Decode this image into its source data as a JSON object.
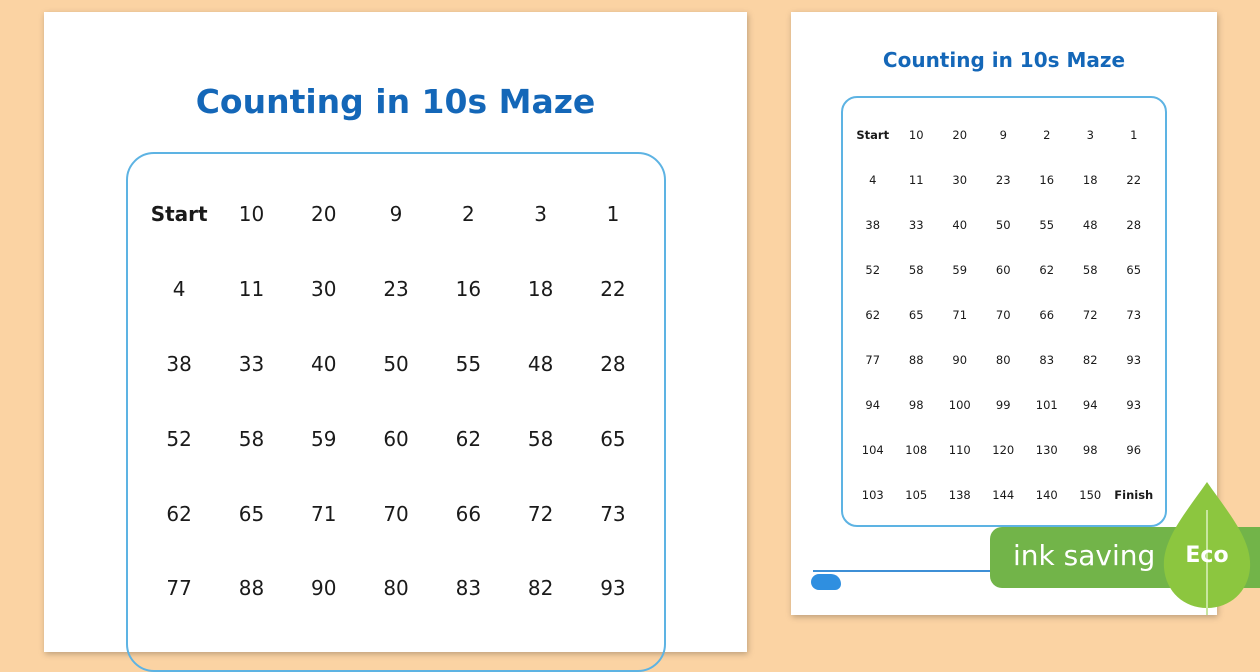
{
  "large_sheet": {
    "title": "Counting in 10s Maze",
    "rows": [
      [
        "Start",
        "10",
        "20",
        "9",
        "2",
        "3",
        "1"
      ],
      [
        "4",
        "11",
        "30",
        "23",
        "16",
        "18",
        "22"
      ],
      [
        "38",
        "33",
        "40",
        "50",
        "55",
        "48",
        "28"
      ],
      [
        "52",
        "58",
        "59",
        "60",
        "62",
        "58",
        "65"
      ],
      [
        "62",
        "65",
        "71",
        "70",
        "66",
        "72",
        "73"
      ],
      [
        "77",
        "88",
        "90",
        "80",
        "83",
        "82",
        "93"
      ]
    ]
  },
  "small_sheet": {
    "title": "Counting in 10s Maze",
    "rows": [
      [
        "Start",
        "10",
        "20",
        "9",
        "2",
        "3",
        "1"
      ],
      [
        "4",
        "11",
        "30",
        "23",
        "16",
        "18",
        "22"
      ],
      [
        "38",
        "33",
        "40",
        "50",
        "55",
        "48",
        "28"
      ],
      [
        "52",
        "58",
        "59",
        "60",
        "62",
        "58",
        "65"
      ],
      [
        "62",
        "65",
        "71",
        "70",
        "66",
        "72",
        "73"
      ],
      [
        "77",
        "88",
        "90",
        "80",
        "83",
        "82",
        "93"
      ],
      [
        "94",
        "98",
        "100",
        "99",
        "101",
        "94",
        "93"
      ],
      [
        "104",
        "108",
        "110",
        "120",
        "130",
        "98",
        "96"
      ],
      [
        "103",
        "105",
        "138",
        "144",
        "140",
        "150",
        "Finish"
      ]
    ]
  },
  "eco_badge": {
    "banner_text": "ink saving",
    "leaf_text": "Eco",
    "banner_color": "#72b449",
    "leaf_color": "#8cc63f"
  },
  "colors": {
    "background": "#fbd3a3",
    "title": "#1467b8",
    "maze_border": "#5db3e3"
  }
}
